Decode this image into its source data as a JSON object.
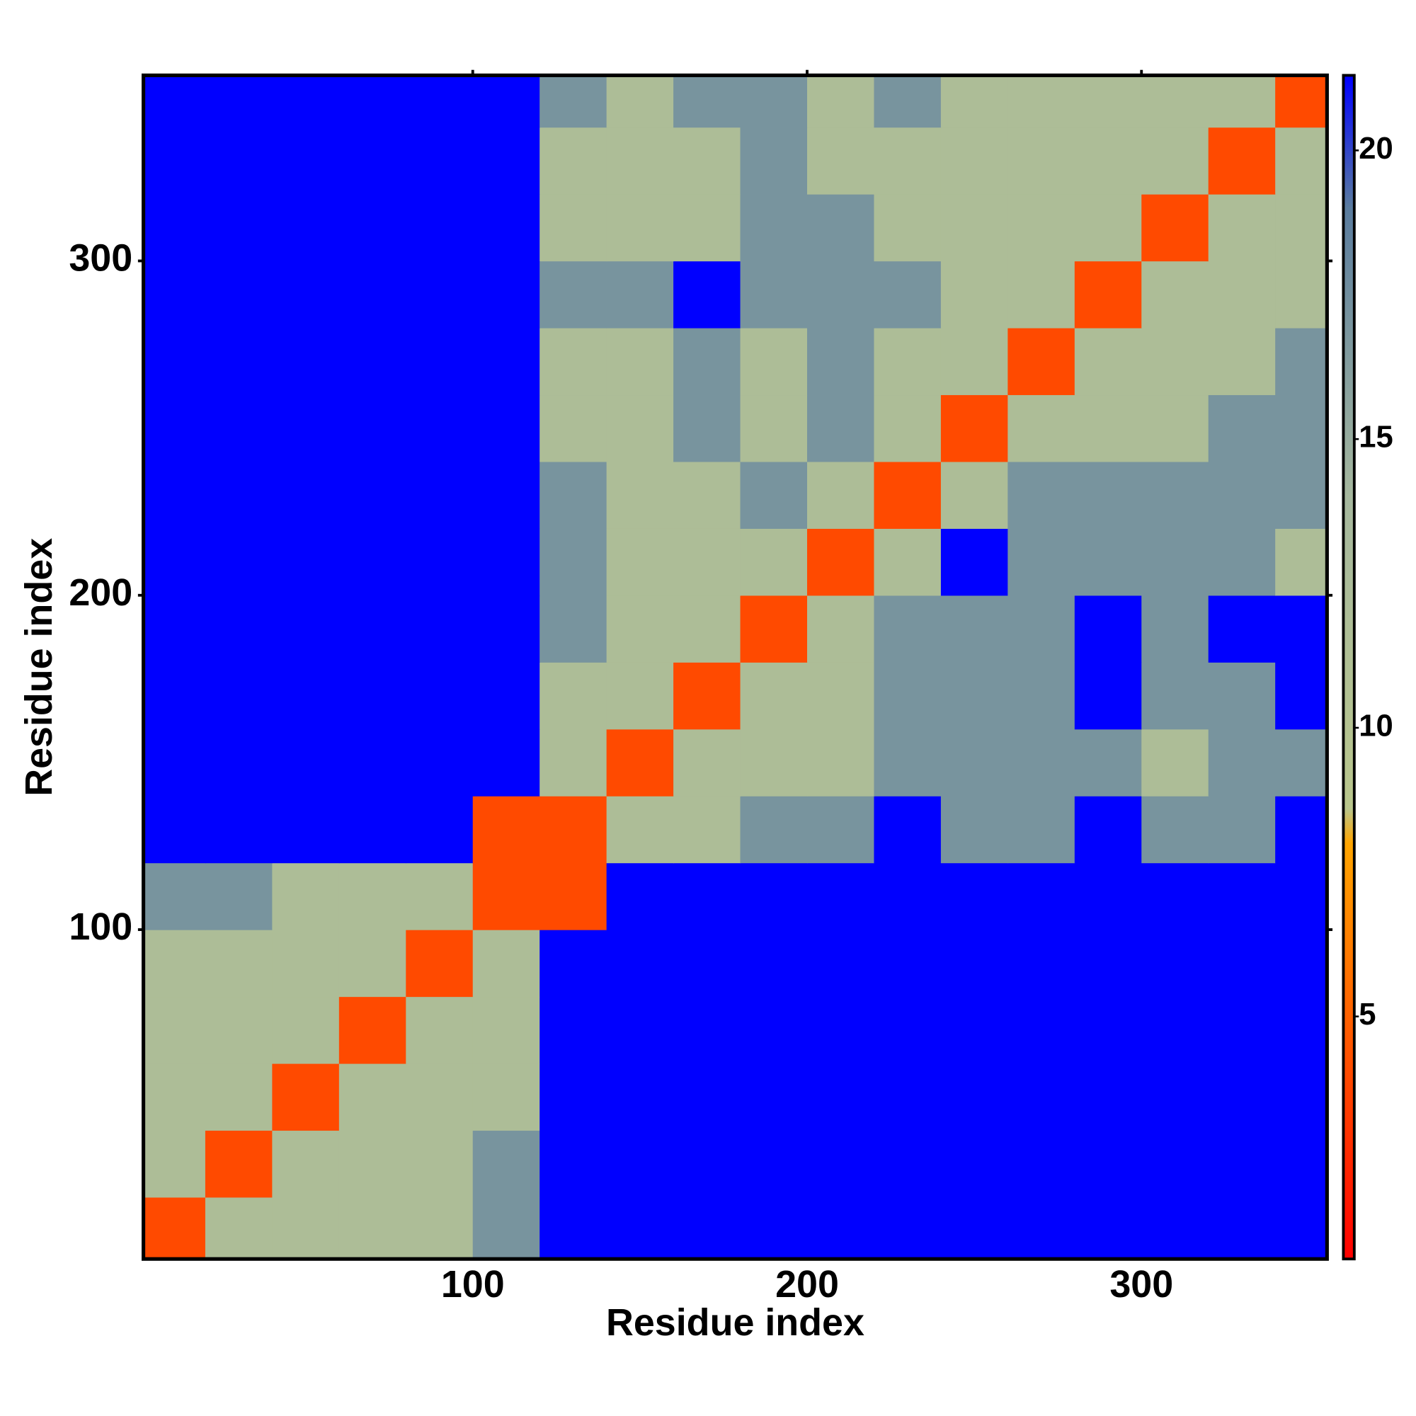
{
  "chart_data": {
    "type": "heatmap",
    "x_label": "Residue index",
    "y_label": "Residue index",
    "xlim": [
      1.5,
      355.5
    ],
    "ylim": [
      1.5,
      355.5
    ],
    "xticks": [
      100,
      200,
      300
    ],
    "yticks": [
      100,
      200,
      300
    ],
    "xbins": [
      1.5,
      20,
      40,
      60,
      80,
      100,
      120,
      140,
      160,
      180,
      200,
      220,
      240,
      260,
      280,
      300,
      320,
      340,
      355.5
    ],
    "ybins": [
      1.5,
      20,
      40,
      60,
      80,
      100,
      120,
      140,
      160,
      180,
      200,
      220,
      240,
      260,
      280,
      300,
      320,
      340,
      355.5
    ],
    "z": [
      [
        4,
        12,
        12,
        12,
        12,
        17,
        21.3,
        21.3,
        21.3,
        21.3,
        21.3,
        21.3,
        21.3,
        21.3,
        21.3,
        21.3,
        21.3,
        21.3
      ],
      [
        12,
        4,
        12,
        12,
        12,
        17,
        21.3,
        21.3,
        21.3,
        21.3,
        21.3,
        21.3,
        21.3,
        21.3,
        21.3,
        21.3,
        21.3,
        21.3
      ],
      [
        12,
        12,
        4,
        12,
        12,
        12,
        21.3,
        21.3,
        21.3,
        21.3,
        21.3,
        21.3,
        21.3,
        21.3,
        21.3,
        21.3,
        21.3,
        21.3
      ],
      [
        12,
        12,
        12,
        4,
        12,
        12,
        21.3,
        21.3,
        21.3,
        21.3,
        21.3,
        21.3,
        21.3,
        21.3,
        21.3,
        21.3,
        21.3,
        21.3
      ],
      [
        12,
        12,
        12,
        12,
        4,
        12,
        21.3,
        21.3,
        21.3,
        21.3,
        21.3,
        21.3,
        21.3,
        21.3,
        21.3,
        21.3,
        21.3,
        21.3
      ],
      [
        17,
        17,
        12,
        12,
        12,
        4,
        4,
        21.3,
        21.3,
        21.3,
        21.3,
        21.3,
        21.3,
        21.3,
        21.3,
        21.3,
        21.3,
        21.3
      ],
      [
        21.3,
        21.3,
        21.3,
        21.3,
        21.3,
        4,
        4,
        12,
        12,
        17,
        17,
        21.3,
        17,
        17,
        21.3,
        17,
        17,
        21.3
      ],
      [
        21.3,
        21.3,
        21.3,
        21.3,
        21.3,
        21.3,
        12,
        4,
        12,
        12,
        12,
        17,
        17,
        17,
        17,
        12,
        17,
        17
      ],
      [
        21.3,
        21.3,
        21.3,
        21.3,
        21.3,
        21.3,
        12,
        12,
        4,
        12,
        12,
        17,
        17,
        17,
        21.3,
        17,
        17,
        21.3
      ],
      [
        21.3,
        21.3,
        21.3,
        21.3,
        21.3,
        21.3,
        17,
        12,
        12,
        4,
        12,
        17,
        17,
        17,
        21.3,
        17,
        21.3,
        21.3
      ],
      [
        21.3,
        21.3,
        21.3,
        21.3,
        21.3,
        21.3,
        17,
        12,
        12,
        12,
        4,
        12,
        21.3,
        17,
        17,
        17,
        17,
        12
      ],
      [
        21.3,
        21.3,
        21.3,
        21.3,
        21.3,
        21.3,
        17,
        12,
        12,
        17,
        12,
        4,
        12,
        17,
        17,
        17,
        17,
        17
      ],
      [
        21.3,
        21.3,
        21.3,
        21.3,
        21.3,
        21.3,
        12,
        12,
        17,
        12,
        17,
        12,
        4,
        12,
        12,
        12,
        17,
        17
      ],
      [
        21.3,
        21.3,
        21.3,
        21.3,
        21.3,
        21.3,
        12,
        12,
        17,
        12,
        17,
        12,
        12,
        4,
        12,
        12,
        12,
        17
      ],
      [
        21.3,
        21.3,
        21.3,
        21.3,
        21.3,
        21.3,
        17,
        17,
        21.3,
        17,
        17,
        17,
        12,
        12,
        4,
        12,
        12,
        12
      ],
      [
        21.3,
        21.3,
        21.3,
        21.3,
        21.3,
        21.3,
        12,
        12,
        12,
        17,
        17,
        12,
        12,
        12,
        12,
        4,
        12,
        12
      ],
      [
        21.3,
        21.3,
        21.3,
        21.3,
        21.3,
        21.3,
        12,
        12,
        12,
        17,
        12,
        12,
        12,
        12,
        12,
        12,
        4,
        12
      ],
      [
        21.3,
        21.3,
        21.3,
        21.3,
        21.3,
        21.3,
        17,
        12,
        17,
        17,
        12,
        17,
        12,
        12,
        12,
        12,
        12,
        4
      ]
    ],
    "clim": [
      0.8,
      21.3
    ],
    "cticks": [
      5,
      10,
      15,
      20
    ],
    "colorscale": [
      [
        0.8,
        "#ff0000"
      ],
      [
        4,
        "#ff4a00"
      ],
      [
        8,
        "#ffa500"
      ],
      [
        8.6,
        "#b9c68c"
      ],
      [
        14,
        "#a6b89e"
      ],
      [
        19,
        "#5a7c9e"
      ],
      [
        21.3,
        "#0000ff"
      ]
    ]
  }
}
